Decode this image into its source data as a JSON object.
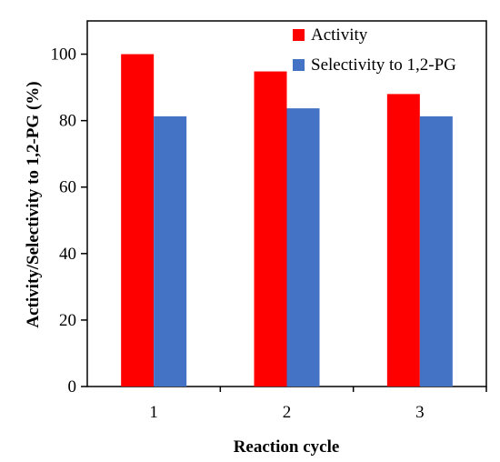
{
  "chart_data": {
    "type": "bar",
    "categories": [
      "1",
      "2",
      "3"
    ],
    "series": [
      {
        "name": "Activity",
        "values": [
          100,
          94.8,
          88
        ],
        "color": "#ff0000"
      },
      {
        "name": "Selectivity to 1,2-PG",
        "values": [
          81.3,
          83.7,
          81.3
        ],
        "color": "#4472c4"
      }
    ],
    "xlabel": "Reaction cycle",
    "ylabel": "Activity/Selectivity to 1,2-PG (%)",
    "ylim": [
      0,
      110
    ],
    "yticks": [
      "0",
      "20",
      "40",
      "60",
      "80",
      "100"
    ],
    "grid": false,
    "legend_position": "top-right"
  }
}
